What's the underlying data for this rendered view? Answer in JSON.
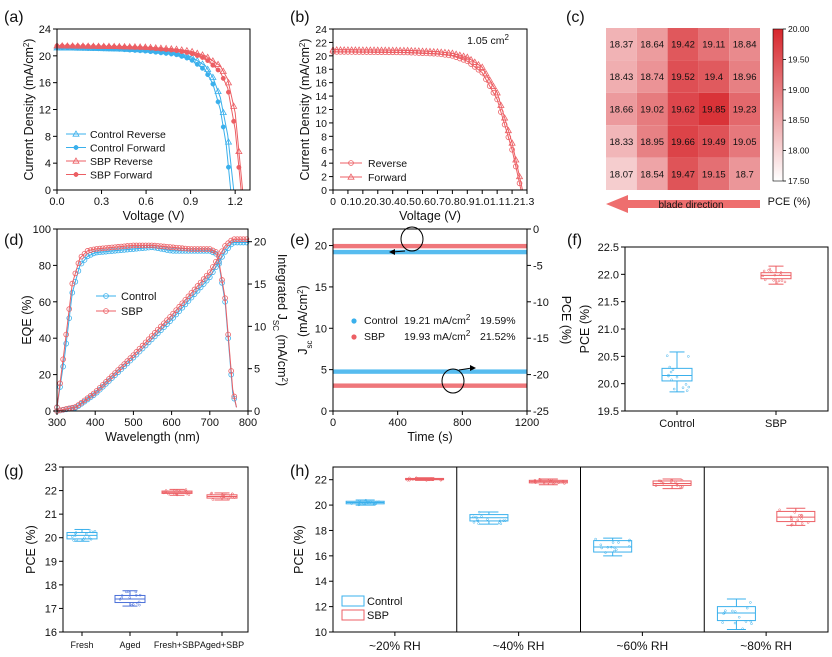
{
  "colors": {
    "control": "#3ab0ec",
    "sbp": "#ec5f64",
    "control_dark": "#4a6fd8",
    "heat_low": "#ffffff",
    "heat_high": "#d7262c"
  },
  "chart_data": [
    {
      "panel": "(a)",
      "type": "line",
      "xlabel": "Voltage (V)",
      "ylabel": "Current Density (mA/cm²)",
      "xlim": [
        0,
        1.3
      ],
      "ylim": [
        0,
        24
      ],
      "xticks": [
        "0.0",
        "0.3",
        "0.6",
        "0.9",
        "1.2"
      ],
      "yticks": [
        "0",
        "4",
        "8",
        "12",
        "16",
        "20",
        "24"
      ],
      "legend_position": "bottom-left",
      "series": [
        {
          "name": "Control Reverse",
          "color_key": "control",
          "marker": "triangle",
          "jsc": 21.2,
          "voc": 1.19,
          "pts": [
            [
              0,
              21.2
            ],
            [
              0.2,
              21.15
            ],
            [
              0.4,
              21.05
            ],
            [
              0.6,
              20.9
            ],
            [
              0.8,
              20.5
            ],
            [
              0.9,
              19.9
            ],
            [
              1.0,
              18.5
            ],
            [
              1.05,
              16.8
            ],
            [
              1.1,
              13.8
            ],
            [
              1.15,
              8.2
            ],
            [
              1.19,
              0
            ]
          ]
        },
        {
          "name": "Control Forward",
          "color_key": "control",
          "marker": "circle",
          "jsc": 21.2,
          "voc": 1.17,
          "pts": [
            [
              0,
              21.2
            ],
            [
              0.2,
              21.1
            ],
            [
              0.4,
              21.0
            ],
            [
              0.6,
              20.7
            ],
            [
              0.8,
              20.2
            ],
            [
              0.9,
              19.5
            ],
            [
              1.0,
              17.8
            ],
            [
              1.05,
              15.8
            ],
            [
              1.1,
              12.0
            ],
            [
              1.14,
              6.8
            ],
            [
              1.17,
              0
            ]
          ]
        },
        {
          "name": "SBP Reverse",
          "color_key": "sbp",
          "marker": "triangle",
          "jsc": 21.5,
          "voc": 1.25,
          "pts": [
            [
              0,
              21.5
            ],
            [
              0.2,
              21.45
            ],
            [
              0.4,
              21.4
            ],
            [
              0.6,
              21.3
            ],
            [
              0.8,
              21.0
            ],
            [
              0.9,
              20.7
            ],
            [
              1.0,
              20.0
            ],
            [
              1.1,
              18.5
            ],
            [
              1.15,
              16.5
            ],
            [
              1.2,
              11.5
            ],
            [
              1.25,
              0
            ]
          ]
        },
        {
          "name": "SBP Forward",
          "color_key": "sbp",
          "marker": "circle",
          "jsc": 21.5,
          "voc": 1.24,
          "pts": [
            [
              0,
              21.5
            ],
            [
              0.2,
              21.45
            ],
            [
              0.4,
              21.35
            ],
            [
              0.6,
              21.2
            ],
            [
              0.8,
              20.8
            ],
            [
              0.9,
              20.4
            ],
            [
              1.0,
              19.6
            ],
            [
              1.1,
              17.6
            ],
            [
              1.15,
              15.2
            ],
            [
              1.2,
              9.0
            ],
            [
              1.24,
              0
            ]
          ]
        }
      ]
    },
    {
      "panel": "(b)",
      "type": "line",
      "xlabel": "Voltage (V)",
      "ylabel": "Current Density (mA/cm²)",
      "annotation": "1.05 cm²",
      "xlim": [
        0,
        1.3
      ],
      "ylim": [
        0,
        24
      ],
      "xticks": [
        "0",
        "0.1",
        "0.2",
        "0.3",
        "0.4",
        "0.5",
        "0.6",
        "0.7",
        "0.8",
        "0.9",
        "1.0",
        "1.1",
        "1.2",
        "1.3"
      ],
      "yticks": [
        "0",
        "2",
        "4",
        "6",
        "8",
        "10",
        "12",
        "14",
        "16",
        "18",
        "20",
        "22",
        "24"
      ],
      "legend_position": "bottom-left",
      "series": [
        {
          "name": "Reverse",
          "color_key": "sbp",
          "marker": "circle-open",
          "pts": [
            [
              0,
              20.6
            ],
            [
              0.3,
              20.55
            ],
            [
              0.5,
              20.5
            ],
            [
              0.7,
              20.3
            ],
            [
              0.8,
              20.0
            ],
            [
              0.9,
              19.2
            ],
            [
              1.0,
              17.5
            ],
            [
              1.1,
              13.5
            ],
            [
              1.2,
              6.0
            ],
            [
              1.26,
              0
            ]
          ]
        },
        {
          "name": "Forward",
          "color_key": "sbp",
          "marker": "triangle",
          "pts": [
            [
              0,
              20.9
            ],
            [
              0.3,
              20.85
            ],
            [
              0.5,
              20.8
            ],
            [
              0.7,
              20.6
            ],
            [
              0.8,
              20.4
            ],
            [
              0.9,
              19.8
            ],
            [
              1.0,
              18.3
            ],
            [
              1.1,
              14.5
            ],
            [
              1.2,
              7.0
            ],
            [
              1.27,
              0
            ]
          ]
        }
      ]
    },
    {
      "panel": "(c)",
      "type": "heatmap",
      "direction_label": "blade direction",
      "colorbar": {
        "label": "PCE (%)",
        "ticks": [
          "17.50",
          "18.00",
          "18.50",
          "19.00",
          "19.50",
          "20.00"
        ],
        "min": 17.5,
        "max": 20.0
      },
      "rows": [
        [
          "18.37",
          "18.64",
          "19.42",
          "19.11",
          "18.84"
        ],
        [
          "18.43",
          "18.74",
          "19.52",
          "19.4",
          "18.96"
        ],
        [
          "18.66",
          "19.02",
          "19.62",
          "19.85",
          "19.23"
        ],
        [
          "18.33",
          "18.95",
          "19.66",
          "19.49",
          "19.05"
        ],
        [
          "18.07",
          "18.54",
          "19.47",
          "19.15",
          "18.7"
        ]
      ]
    },
    {
      "panel": "(d)",
      "type": "line",
      "xlabel": "Wavelength (nm)",
      "ylabel": "EQE (%)",
      "y2label": "Integrated Jsc (mA/cm²)",
      "xlim": [
        300,
        800
      ],
      "ylim": [
        0,
        100
      ],
      "y2lim": [
        0,
        21.5
      ],
      "xticks": [
        "300",
        "400",
        "500",
        "600",
        "700",
        "800"
      ],
      "yticks": [
        "0",
        "20",
        "40",
        "60",
        "80",
        "100"
      ],
      "y2ticks": [
        "0",
        "5",
        "10",
        "15",
        "20"
      ],
      "legend_position": "middle-left",
      "series": [
        {
          "name": "Control",
          "color_key": "control",
          "axis": "left",
          "pts": [
            [
              300,
              2
            ],
            [
              320,
              30
            ],
            [
              340,
              65
            ],
            [
              360,
              80
            ],
            [
              380,
              85
            ],
            [
              400,
              87
            ],
            [
              450,
              88
            ],
            [
              500,
              89
            ],
            [
              550,
              90
            ],
            [
              600,
              88
            ],
            [
              650,
              88
            ],
            [
              700,
              88
            ],
            [
              720,
              86
            ],
            [
              740,
              60
            ],
            [
              760,
              10
            ],
            [
              770,
              2
            ]
          ]
        },
        {
          "name": "SBP",
          "color_key": "sbp",
          "axis": "left",
          "pts": [
            [
              300,
              2
            ],
            [
              320,
              35
            ],
            [
              340,
              70
            ],
            [
              360,
              84
            ],
            [
              380,
              88
            ],
            [
              400,
              89
            ],
            [
              450,
              90
            ],
            [
              500,
              91
            ],
            [
              550,
              91
            ],
            [
              600,
              90
            ],
            [
              650,
              89
            ],
            [
              700,
              89
            ],
            [
              720,
              87
            ],
            [
              740,
              62
            ],
            [
              760,
              12
            ],
            [
              770,
              2
            ]
          ]
        },
        {
          "name": "",
          "color_key": "control",
          "axis": "right",
          "pts": [
            [
              300,
              0
            ],
            [
              350,
              0.4
            ],
            [
              400,
              2.0
            ],
            [
              500,
              6.3
            ],
            [
              600,
              10.8
            ],
            [
              700,
              15.8
            ],
            [
              740,
              18.8
            ],
            [
              760,
              19.9
            ],
            [
              800,
              19.9
            ]
          ]
        },
        {
          "name": "",
          "color_key": "sbp",
          "axis": "right",
          "pts": [
            [
              300,
              0
            ],
            [
              350,
              0.5
            ],
            [
              400,
              2.2
            ],
            [
              500,
              6.6
            ],
            [
              600,
              11.3
            ],
            [
              700,
              16.4
            ],
            [
              740,
              19.5
            ],
            [
              760,
              20.3
            ],
            [
              800,
              20.3
            ]
          ]
        }
      ]
    },
    {
      "panel": "(e)",
      "type": "scatter",
      "xlabel": "Time (s)",
      "ylabel": "Jsc (mA/cm²)",
      "y2label": "PCE (%)",
      "xlim": [
        0,
        1200
      ],
      "ylim": [
        0,
        22
      ],
      "y2lim": [
        -25,
        0
      ],
      "xticks": [
        "0",
        "400",
        "800",
        "1200"
      ],
      "yticks": [
        "0",
        "5",
        "10",
        "15",
        "20"
      ],
      "y2ticks": [
        "0",
        "-5",
        "-10",
        "-15",
        "-20",
        "-25"
      ],
      "legend": [
        {
          "name": "Control",
          "jsc": "19.21 mA/cm²",
          "pce": "19.59%",
          "color_key": "control"
        },
        {
          "name": "SBP",
          "jsc": "19.93 mA/cm²",
          "pce": "21.52%",
          "color_key": "sbp"
        }
      ],
      "series": [
        {
          "name": "Control Jsc",
          "color_key": "control",
          "level": 19.21
        },
        {
          "name": "SBP Jsc",
          "color_key": "sbp",
          "level": 19.93
        },
        {
          "name": "Control PCE",
          "color_key": "control",
          "level2": -19.59
        },
        {
          "name": "SBP PCE",
          "color_key": "sbp",
          "level2": -21.52
        }
      ]
    },
    {
      "panel": "(f)",
      "type": "box",
      "ylabel": "PCE (%)",
      "ylim": [
        19.5,
        22.5
      ],
      "yticks": [
        "19.5",
        "20.0",
        "20.5",
        "21.0",
        "21.5",
        "22.0",
        "22.5"
      ],
      "categories": [
        "Control",
        "SBP"
      ],
      "boxes": [
        {
          "name": "Control",
          "color_key": "control",
          "min": 19.85,
          "q1": 20.05,
          "median": 20.15,
          "q3": 20.28,
          "max": 20.58
        },
        {
          "name": "SBP",
          "color_key": "sbp",
          "min": 21.82,
          "q1": 21.92,
          "median": 21.98,
          "q3": 22.03,
          "max": 22.15
        }
      ]
    },
    {
      "panel": "(g)",
      "type": "box",
      "ylabel": "PCE (%)",
      "ylim": [
        16,
        23
      ],
      "yticks": [
        "16",
        "17",
        "18",
        "19",
        "20",
        "21",
        "22",
        "23"
      ],
      "categories": [
        "Fresh",
        "Aged",
        "Fresh+SBP",
        "Aged+SBP"
      ],
      "boxes": [
        {
          "name": "Fresh",
          "color_key": "control",
          "min": 19.85,
          "q1": 19.95,
          "median": 20.1,
          "q3": 20.22,
          "max": 20.35
        },
        {
          "name": "Aged",
          "color_key": "control_dark",
          "min": 17.1,
          "q1": 17.25,
          "median": 17.4,
          "q3": 17.55,
          "max": 17.75
        },
        {
          "name": "Fresh+SBP",
          "color_key": "sbp",
          "min": 21.8,
          "q1": 21.88,
          "median": 21.93,
          "q3": 21.98,
          "max": 22.05
        },
        {
          "name": "Aged+SBP",
          "color_key": "sbp",
          "min": 21.6,
          "q1": 21.68,
          "median": 21.75,
          "q3": 21.82,
          "max": 21.9
        }
      ]
    },
    {
      "panel": "(h)",
      "type": "box",
      "ylabel": "PCE (%)",
      "ylim": [
        10,
        23
      ],
      "yticks": [
        "10",
        "12",
        "14",
        "16",
        "18",
        "20",
        "22"
      ],
      "categories": [
        "~20% RH",
        "~40% RH",
        "~60% RH",
        "~80% RH"
      ],
      "legend": [
        "Control",
        "SBP"
      ],
      "groups": [
        {
          "control": {
            "min": 20.0,
            "q1": 20.1,
            "median": 20.2,
            "q3": 20.3,
            "max": 20.4
          },
          "sbp": {
            "min": 21.95,
            "q1": 22.0,
            "median": 22.05,
            "q3": 22.1,
            "max": 22.15
          }
        },
        {
          "control": {
            "min": 18.5,
            "q1": 18.75,
            "median": 19.0,
            "q3": 19.25,
            "max": 19.45
          },
          "sbp": {
            "min": 21.6,
            "q1": 21.75,
            "median": 21.85,
            "q3": 21.95,
            "max": 22.05
          }
        },
        {
          "control": {
            "min": 16.0,
            "q1": 16.3,
            "median": 16.7,
            "q3": 17.2,
            "max": 17.4
          },
          "sbp": {
            "min": 21.3,
            "q1": 21.55,
            "median": 21.7,
            "q3": 21.9,
            "max": 22.05
          }
        },
        {
          "control": {
            "min": 10.2,
            "q1": 10.9,
            "median": 11.5,
            "q3": 12.0,
            "max": 12.6
          },
          "sbp": {
            "min": 18.4,
            "q1": 18.7,
            "median": 19.05,
            "q3": 19.5,
            "max": 19.75
          }
        }
      ]
    }
  ]
}
